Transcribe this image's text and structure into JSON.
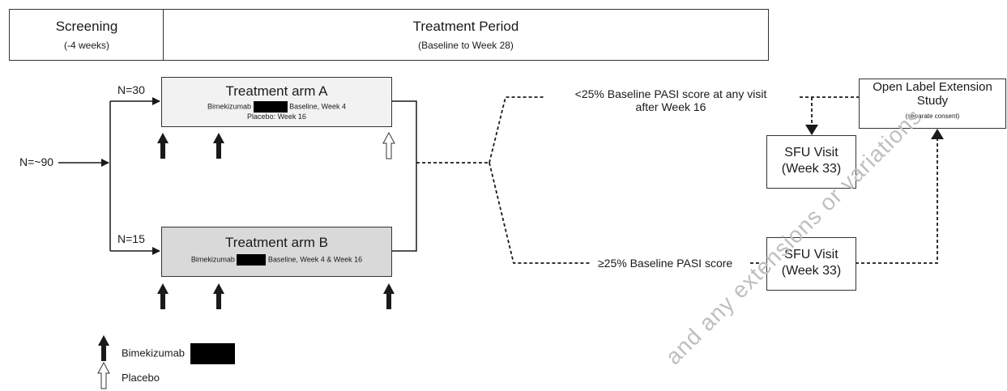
{
  "phases": {
    "screening": {
      "title": "Screening",
      "sub": "(-4 weeks)"
    },
    "treatment": {
      "title": "Treatment Period",
      "sub": "(Baseline to Week 28)"
    }
  },
  "population": {
    "total": "N=~90",
    "arm_a_n": "N=30",
    "arm_b_n": "N=15"
  },
  "arm_a": {
    "title": "Treatment arm A",
    "line1_pre": "Bimekizumab",
    "line1_post": "Baseline, Week 4",
    "line2": "Placebo: Week 16"
  },
  "arm_b": {
    "title": "Treatment arm B",
    "line1_pre": "Bimekizumab",
    "line1_post": "Baseline, Week 4 & Week 16"
  },
  "outcomes": {
    "low_line1": "<25% Baseline PASI score at any visit",
    "low_line2": "after Week 16",
    "high": "≥25% Baseline PASI score"
  },
  "ole": {
    "line1": "Open Label Extension",
    "line2": "Study",
    "note": "(separate consent)"
  },
  "sfu_top": {
    "line1": "SFU Visit",
    "line2": "(Week 33)"
  },
  "sfu_bottom": {
    "line1": "SFU Visit",
    "line2": "(Week 33)"
  },
  "legend": {
    "bimekizumab": "Bimekizumab",
    "placebo": "Placebo"
  },
  "watermark": "and any extensions or variations",
  "colors": {
    "arm_a_fill": "#f2f2f2",
    "arm_b_fill": "#d9d9d9",
    "arrow_dark": "#1a1a1a",
    "arrow_light": "#ffffff"
  }
}
